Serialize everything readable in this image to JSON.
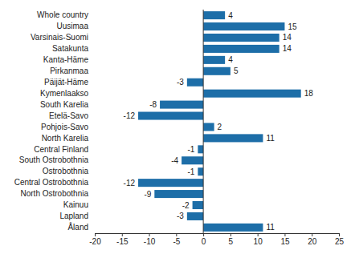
{
  "chart_data": {
    "type": "bar",
    "orientation": "horizontal",
    "categories": [
      "Whole country",
      "Uusimaa",
      "Varsinais-Suomi",
      "Satakunta",
      "Kanta-Häme",
      "Pirkanmaa",
      "Päijät-Häme",
      "Kymenlaakso",
      "South Karelia",
      "Etelä-Savo",
      "Pohjois-Savo",
      "North Karelia",
      "Central Finland",
      "South Ostrobothnia",
      "Ostrobothnia",
      "Central Ostrobothnia",
      "North Ostrobothnia",
      "Kainuu",
      "Lapland",
      "Åland"
    ],
    "values": [
      4,
      15,
      14,
      14,
      4,
      5,
      -3,
      18,
      -8,
      -12,
      2,
      11,
      -1,
      -4,
      -1,
      -12,
      -9,
      -2,
      -3,
      11
    ],
    "color": "#1d6ea8",
    "xlim": [
      -20,
      25
    ],
    "xticks": [
      -20,
      -15,
      -10,
      -5,
      0,
      5,
      10,
      15,
      20,
      25
    ],
    "grid": false,
    "data_labels": true
  }
}
